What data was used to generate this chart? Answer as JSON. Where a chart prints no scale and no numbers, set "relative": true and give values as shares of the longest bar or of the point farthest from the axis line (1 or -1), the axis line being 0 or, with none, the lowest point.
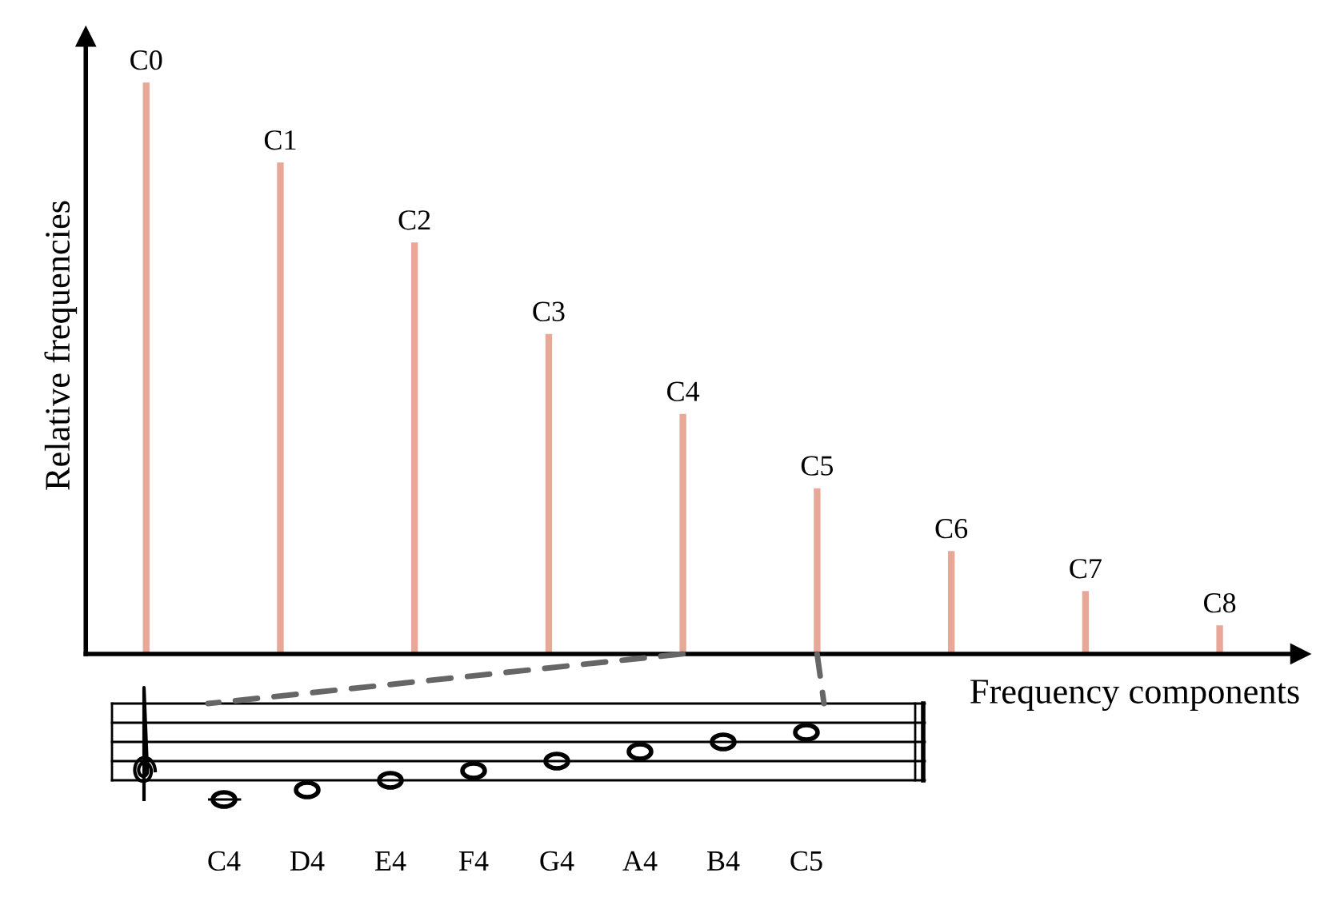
{
  "chart_data": {
    "type": "bar",
    "relative": true,
    "xlabel": "Frequency components",
    "ylabel": "Relative frequencies",
    "categories": [
      null,
      null,
      null,
      null,
      null,
      null,
      null,
      null,
      null
    ],
    "values": [
      1,
      0.86,
      0.72,
      0.56,
      0.42,
      0.29,
      0.18,
      0.11,
      0.05
    ],
    "color": "#e8a898",
    "tick_labels": false,
    "annotations": [
      {
        "text": "C0",
        "y": 1
      },
      {
        "text": "C1",
        "y": 0.86
      },
      {
        "text": "C2",
        "y": 0.72
      },
      {
        "text": "C3",
        "y": 0.56
      },
      {
        "text": "C4",
        "y": 0.42
      },
      {
        "text": "C5",
        "y": 0.29
      },
      {
        "text": "C6",
        "y": 0.18
      },
      {
        "text": "C7",
        "y": 0.11
      },
      {
        "text": "C8",
        "y": 0.05
      },
      "C4",
      "D4",
      "E4",
      "F4",
      "G4",
      "A4",
      "B4",
      "C5"
    ]
  }
}
